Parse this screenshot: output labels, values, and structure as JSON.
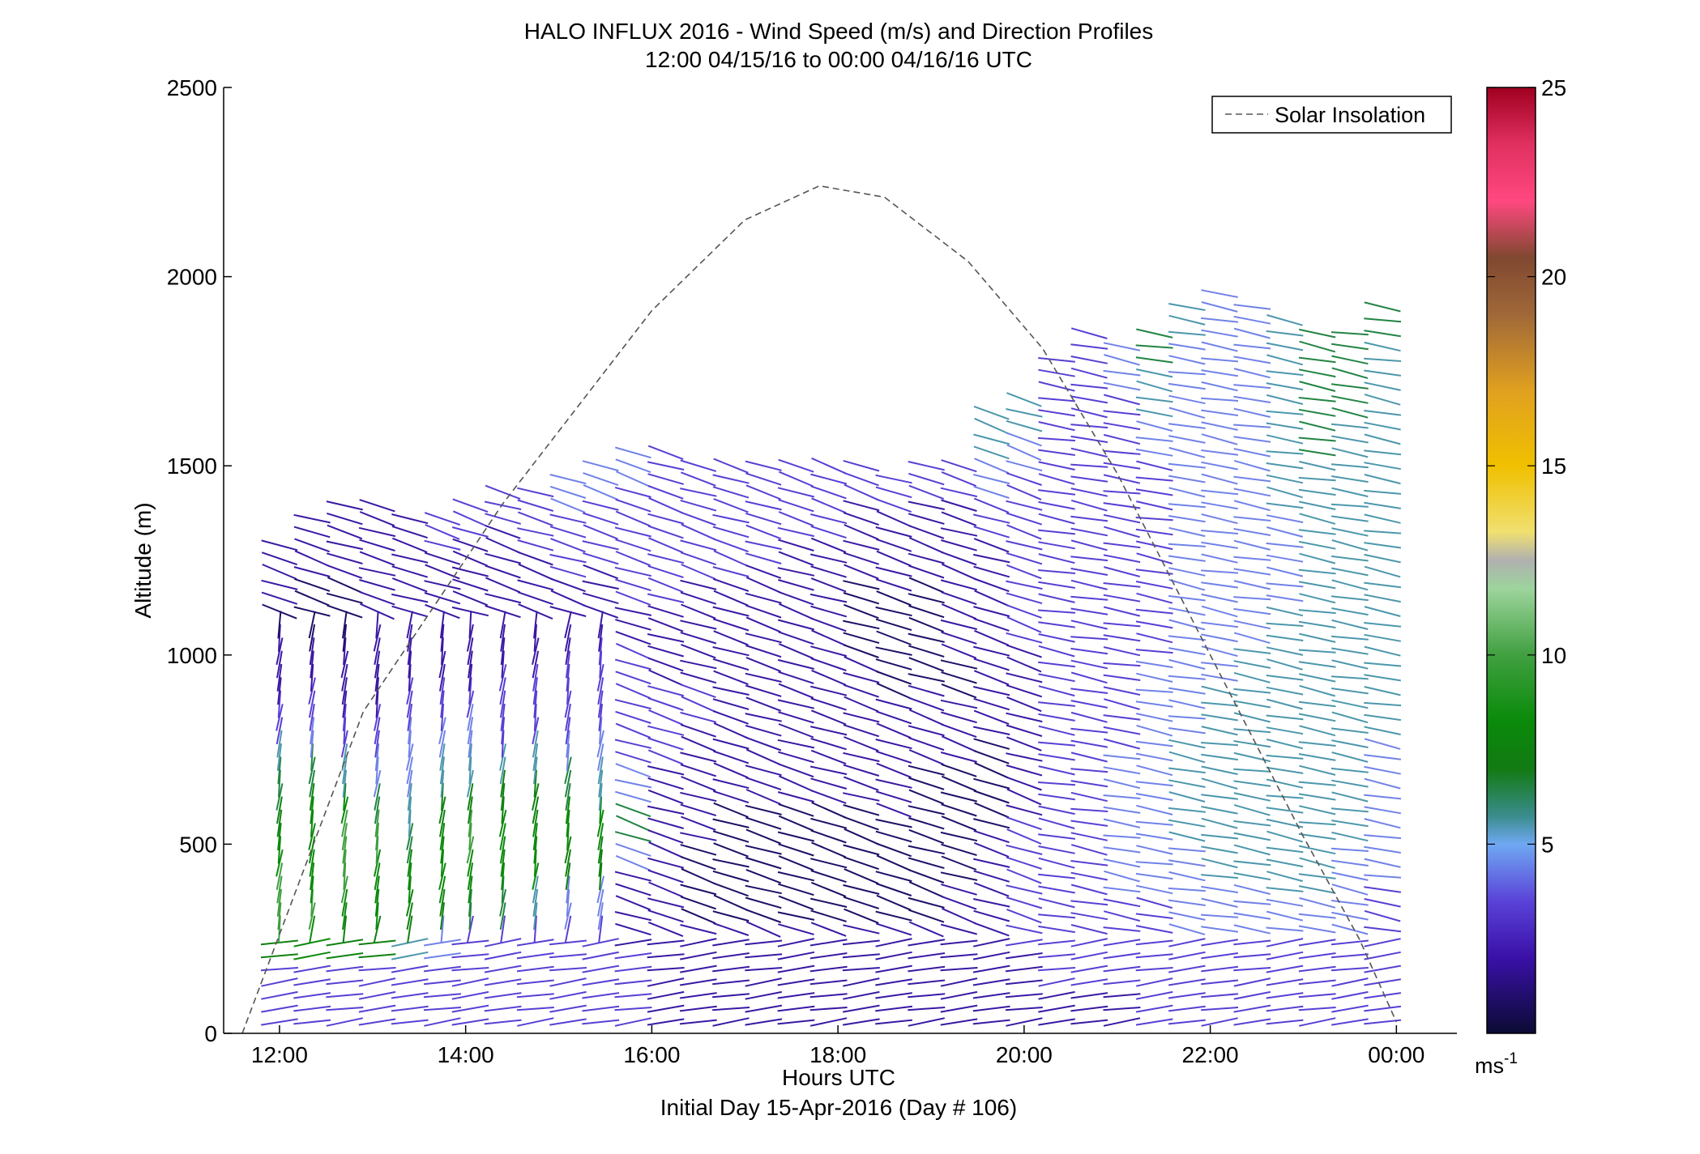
{
  "chart_data": {
    "type": "quiver",
    "title": "HALO INFLUX 2016 - Wind Speed (m/s) and Direction Profiles",
    "subtitle": "12:00 04/15/16 to 00:00 04/16/16  UTC",
    "xlabel": "Hours UTC",
    "xlabel2": "Initial Day 15-Apr-2016 (Day # 106)",
    "ylabel": "Altitude (m)",
    "xlim_hours": [
      11.4,
      24.65
    ],
    "ylim": [
      0,
      2500
    ],
    "x_ticks": [
      {
        "hour": 12,
        "label": "12:00"
      },
      {
        "hour": 14,
        "label": "14:00"
      },
      {
        "hour": 16,
        "label": "16:00"
      },
      {
        "hour": 18,
        "label": "18:00"
      },
      {
        "hour": 20,
        "label": "20:00"
      },
      {
        "hour": 22,
        "label": "22:00"
      },
      {
        "hour": 24,
        "label": "00:00"
      }
    ],
    "y_ticks": [
      0,
      500,
      1000,
      1500,
      2000,
      2500
    ],
    "legend": {
      "label": "Solar Insolation",
      "position": "top-right",
      "style": "dashed",
      "color": "#555555"
    },
    "colorbar": {
      "min": 0,
      "max": 25,
      "ticks": [
        5,
        10,
        15,
        20,
        25
      ],
      "unit_label": "ms",
      "unit_exponent": "-1"
    },
    "solar_insolation": {
      "description_points": [
        [
          11.6,
          0
        ],
        [
          12.9,
          850
        ],
        [
          14.4,
          1400
        ],
        [
          16.0,
          1910
        ],
        [
          17.0,
          2150
        ],
        [
          17.8,
          2240
        ],
        [
          18.5,
          2210
        ],
        [
          19.4,
          2040
        ],
        [
          20.2,
          1810
        ],
        [
          21.0,
          1480
        ],
        [
          22.0,
          1000
        ],
        [
          23.0,
          520
        ],
        [
          23.6,
          250
        ],
        [
          24.0,
          30
        ]
      ]
    },
    "profiles": [
      {
        "time": 12.0,
        "top": 1320,
        "speed": [
          3,
          3,
          7,
          9,
          9,
          8,
          7,
          6,
          5,
          3,
          2,
          2,
          1,
          2,
          2
        ]
      },
      {
        "time": 12.35,
        "top": 1380,
        "speed": [
          3,
          3,
          8,
          9,
          8,
          8,
          8,
          6,
          4,
          3,
          2,
          1,
          1,
          2,
          2
        ]
      },
      {
        "time": 12.7,
        "top": 1400,
        "speed": [
          3,
          3,
          7,
          8,
          9,
          9,
          8,
          5,
          3,
          2,
          2,
          1,
          1,
          2,
          2
        ]
      },
      {
        "time": 13.05,
        "top": 1410,
        "speed": [
          3,
          3,
          7,
          8,
          8,
          9,
          6,
          4,
          3,
          2,
          2,
          2,
          2,
          2,
          2
        ]
      },
      {
        "time": 13.4,
        "top": 1360,
        "speed": [
          3,
          3,
          5,
          7,
          8,
          6,
          5,
          4,
          4,
          3,
          2,
          2,
          2,
          2,
          2
        ]
      },
      {
        "time": 13.75,
        "top": 1380,
        "speed": [
          3,
          3,
          4,
          7,
          8,
          8,
          7,
          5,
          4,
          3,
          2,
          2,
          2,
          2,
          3
        ]
      },
      {
        "time": 14.05,
        "top": 1410,
        "speed": [
          3,
          3,
          3,
          6,
          8,
          9,
          7,
          5,
          4,
          3,
          2,
          2,
          2,
          2,
          3
        ]
      },
      {
        "time": 14.4,
        "top": 1430,
        "speed": [
          3,
          3,
          3,
          6,
          8,
          8,
          7,
          5,
          3,
          3,
          2,
          2,
          2,
          2,
          3
        ]
      },
      {
        "time": 14.75,
        "top": 1460,
        "speed": [
          3,
          3,
          3,
          5,
          8,
          8,
          7,
          5,
          3,
          3,
          2,
          2,
          2,
          3,
          3
        ]
      },
      {
        "time": 15.1,
        "top": 1490,
        "speed": [
          3,
          3,
          3,
          4,
          7,
          8,
          6,
          4,
          3,
          3,
          2,
          2,
          3,
          3,
          4
        ]
      },
      {
        "time": 15.45,
        "top": 1530,
        "speed": [
          3,
          3,
          3,
          4,
          7,
          8,
          5,
          4,
          3,
          3,
          2,
          2,
          3,
          3,
          4
        ]
      },
      {
        "time": 15.8,
        "top": 1560,
        "speed": [
          3,
          3,
          2,
          2,
          4,
          6,
          4,
          3,
          3,
          3,
          2,
          3,
          3,
          3,
          4
        ]
      },
      {
        "time": 16.15,
        "top": 1540,
        "speed": [
          2,
          2,
          2,
          2,
          2,
          2,
          2,
          3,
          3,
          2,
          2,
          3,
          3,
          3,
          3
        ]
      },
      {
        "time": 16.5,
        "top": 1520,
        "speed": [
          2,
          2,
          2,
          1,
          1,
          2,
          2,
          2,
          3,
          2,
          2,
          2,
          3,
          3,
          3
        ]
      },
      {
        "time": 16.85,
        "top": 1520,
        "speed": [
          2,
          2,
          2,
          1,
          1,
          1,
          2,
          2,
          2,
          2,
          2,
          2,
          3,
          3,
          3
        ]
      },
      {
        "time": 17.2,
        "top": 1530,
        "speed": [
          2,
          2,
          2,
          1,
          1,
          1,
          2,
          2,
          2,
          2,
          2,
          2,
          3,
          3,
          3
        ]
      },
      {
        "time": 17.55,
        "top": 1510,
        "speed": [
          2,
          2,
          2,
          1,
          1,
          1,
          2,
          2,
          2,
          2,
          2,
          2,
          2,
          3,
          3
        ]
      },
      {
        "time": 17.9,
        "top": 1510,
        "speed": [
          2,
          2,
          2,
          1,
          1,
          1,
          2,
          2,
          2,
          2,
          2,
          2,
          2,
          3,
          3
        ]
      },
      {
        "time": 18.25,
        "top": 1500,
        "speed": [
          2,
          2,
          2,
          1,
          1,
          1,
          2,
          2,
          2,
          2,
          1,
          1,
          2,
          2,
          3
        ]
      },
      {
        "time": 18.6,
        "top": 1470,
        "speed": [
          2,
          2,
          2,
          1,
          1,
          1,
          2,
          2,
          2,
          1,
          1,
          1,
          2,
          2,
          3
        ]
      },
      {
        "time": 18.95,
        "top": 1510,
        "speed": [
          2,
          2,
          2,
          1,
          1,
          1,
          1,
          2,
          2,
          1,
          1,
          1,
          2,
          2,
          3
        ]
      },
      {
        "time": 19.3,
        "top": 1500,
        "speed": [
          2,
          2,
          2,
          2,
          1,
          1,
          1,
          2,
          2,
          1,
          2,
          2,
          2,
          2,
          3
        ]
      },
      {
        "time": 19.65,
        "top": 1640,
        "speed": [
          2,
          2,
          2,
          2,
          2,
          1,
          1,
          2,
          2,
          2,
          2,
          2,
          3,
          4,
          5
        ]
      },
      {
        "time": 20.0,
        "top": 1700,
        "speed": [
          2,
          2,
          3,
          3,
          3,
          2,
          2,
          2,
          2,
          3,
          3,
          3,
          3,
          4,
          5
        ]
      },
      {
        "time": 20.35,
        "top": 1790,
        "speed": [
          2,
          3,
          3,
          3,
          3,
          3,
          3,
          3,
          3,
          3,
          3,
          3,
          3,
          3,
          3
        ]
      },
      {
        "time": 20.7,
        "top": 1880,
        "speed": [
          2,
          3,
          3,
          3,
          3,
          3,
          3,
          3,
          3,
          3,
          3,
          3,
          3,
          3,
          3
        ]
      },
      {
        "time": 21.05,
        "top": 1830,
        "speed": [
          2,
          3,
          3,
          4,
          4,
          4,
          3,
          3,
          3,
          3,
          3,
          3,
          3,
          3,
          4
        ]
      },
      {
        "time": 21.4,
        "top": 1880,
        "speed": [
          3,
          3,
          3,
          4,
          4,
          4,
          4,
          4,
          3,
          3,
          3,
          3,
          4,
          5,
          6
        ]
      },
      {
        "time": 21.75,
        "top": 1950,
        "speed": [
          3,
          3,
          4,
          4,
          5,
          5,
          4,
          4,
          4,
          4,
          4,
          4,
          4,
          4,
          5
        ]
      },
      {
        "time": 22.1,
        "top": 1960,
        "speed": [
          3,
          3,
          4,
          5,
          5,
          5,
          5,
          4,
          4,
          4,
          4,
          4,
          4,
          4,
          4
        ]
      },
      {
        "time": 22.45,
        "top": 1920,
        "speed": [
          3,
          3,
          4,
          5,
          5,
          5,
          5,
          5,
          4,
          4,
          4,
          4,
          4,
          4,
          4
        ]
      },
      {
        "time": 22.8,
        "top": 1900,
        "speed": [
          3,
          3,
          4,
          5,
          5,
          5,
          5,
          5,
          5,
          4,
          4,
          5,
          5,
          5,
          5
        ]
      },
      {
        "time": 23.15,
        "top": 1880,
        "speed": [
          3,
          3,
          4,
          5,
          5,
          5,
          5,
          5,
          5,
          5,
          5,
          5,
          6,
          6,
          6
        ]
      },
      {
        "time": 23.5,
        "top": 1870,
        "speed": [
          3,
          3,
          4,
          4,
          5,
          5,
          5,
          5,
          5,
          5,
          5,
          5,
          5,
          6,
          6
        ]
      },
      {
        "time": 23.85,
        "top": 1950,
        "speed": [
          3,
          3,
          3,
          4,
          4,
          4,
          5,
          5,
          5,
          5,
          5,
          5,
          5,
          5,
          6
        ]
      }
    ]
  }
}
